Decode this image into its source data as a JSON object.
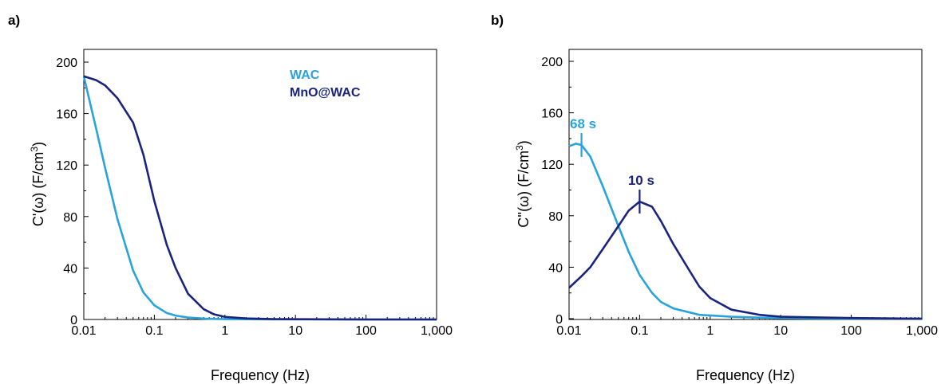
{
  "chart_data": [
    {
      "panel_label": "a)",
      "type": "line",
      "xscale": "log",
      "xlim": [
        0.01,
        1000
      ],
      "ylim": [
        0,
        210
      ],
      "xlabel": "Frequency (Hz)",
      "ylabel_parts": [
        "C'(ω) (F/cm",
        "3",
        ")"
      ],
      "xtick_values": [
        0.01,
        0.1,
        1,
        10,
        100,
        1000
      ],
      "xtick_labels": [
        "0.01",
        "0.1",
        "1",
        "10",
        "100",
        "1,000"
      ],
      "ytick_values": [
        0,
        40,
        80,
        120,
        160,
        200
      ],
      "ytick_labels": [
        "0",
        "40",
        "80",
        "120",
        "160",
        "200"
      ],
      "grid": false,
      "legend_position": "top-center",
      "series": [
        {
          "name": "WAC",
          "color": "#29a3db",
          "x": [
            0.01,
            0.015,
            0.02,
            0.03,
            0.05,
            0.07,
            0.1,
            0.15,
            0.2,
            0.3,
            0.5,
            0.7,
            1,
            2,
            5,
            10,
            100,
            1000
          ],
          "y": [
            189,
            148,
            118,
            78,
            38,
            21,
            11,
            5,
            3,
            1.5,
            0.7,
            0.4,
            0.3,
            0.2,
            0.1,
            0.1,
            0,
            0
          ]
        },
        {
          "name": "MnO@WAC",
          "color": "#1a237e",
          "x": [
            0.01,
            0.015,
            0.02,
            0.03,
            0.05,
            0.07,
            0.1,
            0.15,
            0.2,
            0.3,
            0.5,
            0.7,
            1,
            2,
            5,
            10,
            100,
            1000
          ],
          "y": [
            189,
            186,
            182,
            172,
            153,
            128,
            92,
            58,
            40,
            20,
            8,
            4,
            2,
            0.8,
            0.3,
            0.2,
            0,
            0
          ]
        }
      ]
    },
    {
      "panel_label": "b)",
      "type": "line",
      "xscale": "log",
      "xlim": [
        0.01,
        1000
      ],
      "ylim": [
        0,
        210
      ],
      "xlabel": "Frequency (Hz)",
      "ylabel_parts": [
        "C''(ω) (F/cm",
        "3",
        ")"
      ],
      "xtick_values": [
        0.01,
        0.1,
        1,
        10,
        100,
        1000
      ],
      "xtick_labels": [
        "0.01",
        "0.1",
        "1",
        "10",
        "100",
        "1,000"
      ],
      "ytick_values": [
        0,
        40,
        80,
        120,
        160,
        200
      ],
      "ytick_labels": [
        "0",
        "40",
        "80",
        "120",
        "160",
        "200"
      ],
      "grid": false,
      "series": [
        {
          "color": "#29a3db",
          "x": [
            0.01,
            0.0125,
            0.015,
            0.02,
            0.03,
            0.05,
            0.07,
            0.1,
            0.15,
            0.2,
            0.3,
            0.5,
            0.7,
            1,
            2,
            5,
            10,
            100,
            1000
          ],
          "y": [
            134,
            136,
            135,
            126,
            103,
            72,
            52,
            34,
            20,
            13,
            8,
            5,
            3,
            2.5,
            1.5,
            0.8,
            0.5,
            0,
            0
          ]
        },
        {
          "color": "#1a237e",
          "x": [
            0.01,
            0.015,
            0.02,
            0.03,
            0.05,
            0.07,
            0.1,
            0.15,
            0.2,
            0.3,
            0.5,
            0.7,
            1,
            2,
            5,
            10,
            100,
            1000
          ],
          "y": [
            24,
            33,
            40,
            54,
            72,
            84,
            91,
            87,
            76,
            58,
            38,
            25,
            16,
            7,
            3,
            1.5,
            0.5,
            0
          ]
        }
      ],
      "annotations": [
        {
          "text": "68 s",
          "x": 0.015,
          "y": 135,
          "color": "#29a3db"
        },
        {
          "text": "10 s",
          "x": 0.1,
          "y": 91,
          "color": "#1a237e"
        }
      ]
    }
  ]
}
